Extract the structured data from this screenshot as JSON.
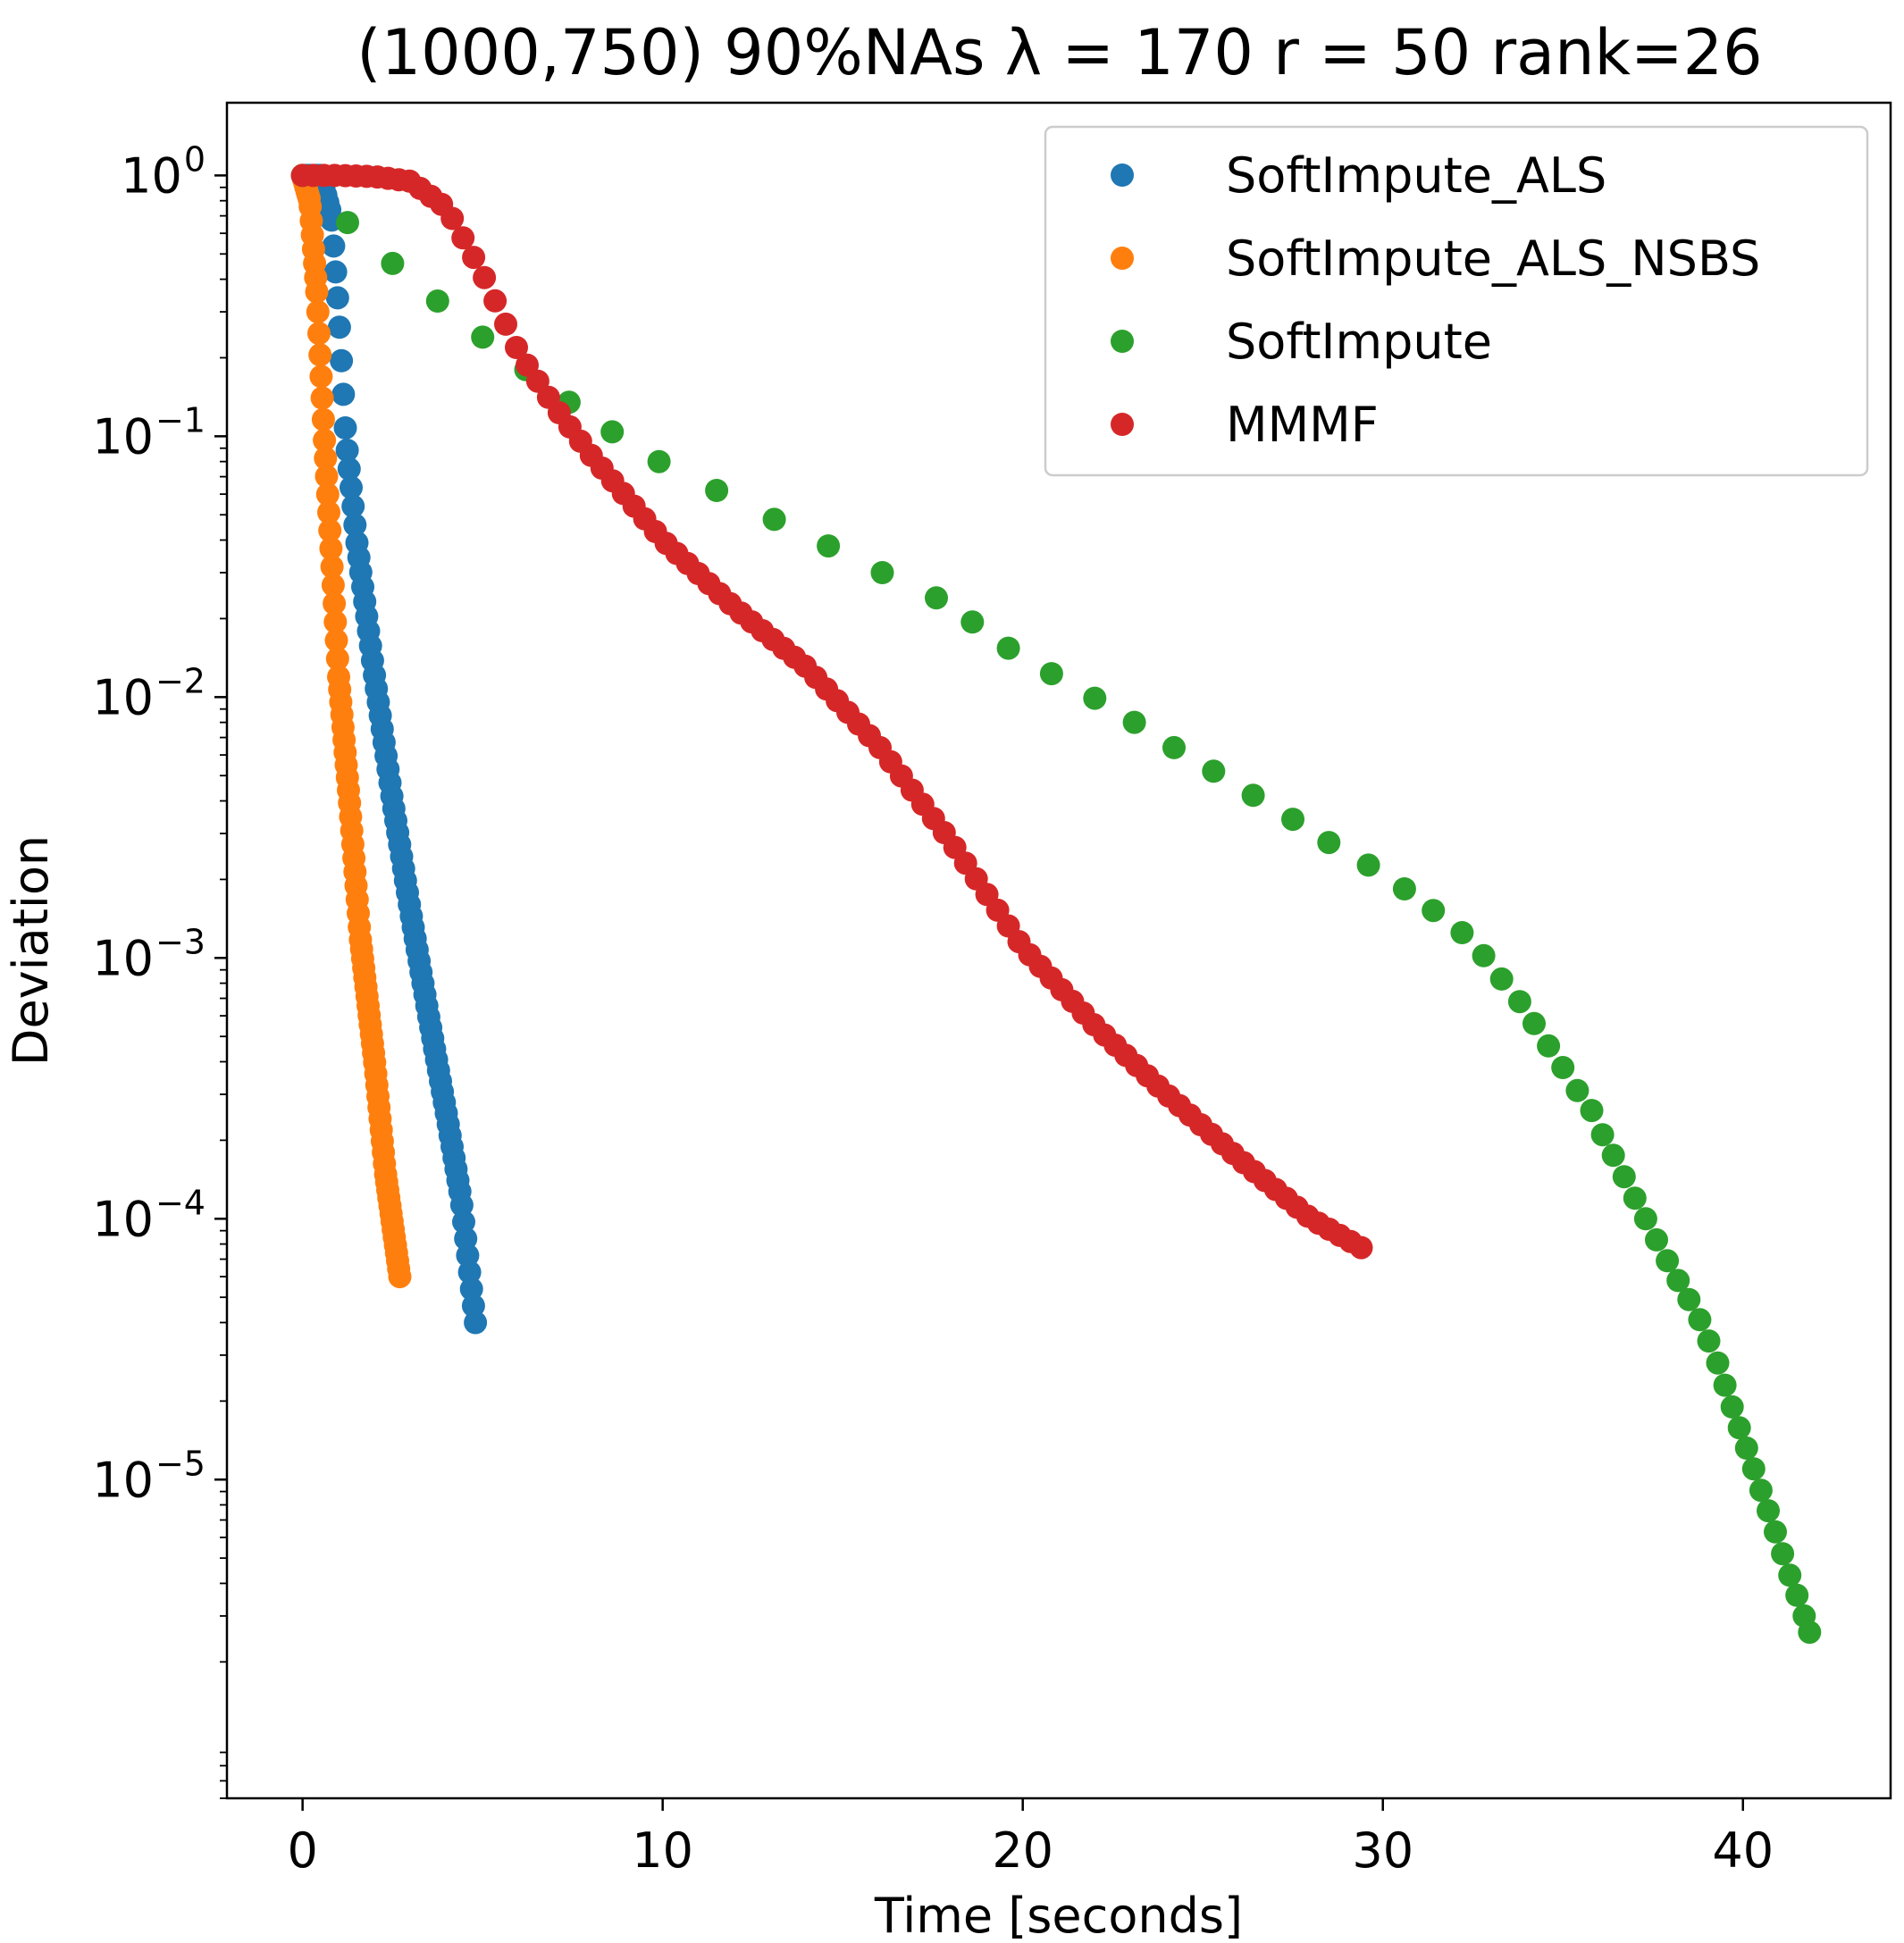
{
  "chart_data": {
    "type": "scatter",
    "title": "(1000,750) 90%NAs λ = 170 r = 50 rank=26",
    "xlabel": "Time [seconds]",
    "ylabel": "Deviation",
    "y_scale": "log",
    "xlim": [
      -2.1,
      44.1
    ],
    "ylim": [
      6e-07,
      1.9
    ],
    "x_ticks": [
      0,
      10,
      20,
      30,
      40
    ],
    "x_tick_labels": [
      "0",
      "10",
      "20",
      "30",
      "40"
    ],
    "y_ticks": [
      {
        "value": 1,
        "base": "10",
        "exp": "0"
      },
      {
        "value": 0.1,
        "base": "10",
        "exp": "−1"
      },
      {
        "value": 0.01,
        "base": "10",
        "exp": "−2"
      },
      {
        "value": 0.001,
        "base": "10",
        "exp": "−3"
      },
      {
        "value": 0.0001,
        "base": "10",
        "exp": "−4"
      },
      {
        "value": 1e-05,
        "base": "10",
        "exp": "−5"
      }
    ],
    "legend_position": "top-right",
    "grid": false,
    "series": [
      {
        "name": "SoftImpute_ALS",
        "color": "#1f77b4",
        "curve": {
          "count": 90,
          "t_max": 4.8,
          "anchors": [
            [
              0,
              1.0
            ],
            [
              0.5,
              1.0
            ],
            [
              0.8,
              0.7
            ],
            [
              1.0,
              0.3
            ],
            [
              1.2,
              0.1
            ],
            [
              1.5,
              0.04
            ],
            [
              2.0,
              0.012
            ],
            [
              2.5,
              0.004
            ],
            [
              3.0,
              0.0015
            ],
            [
              3.5,
              0.0006
            ],
            [
              4.0,
              0.00025
            ],
            [
              4.4,
              0.00012
            ],
            [
              4.8,
              4e-05
            ]
          ]
        }
      },
      {
        "name": "SoftImpute_ALS_NSBS",
        "color": "#ff7f0e",
        "curve": {
          "count": 90,
          "t_max": 2.7,
          "anchors": [
            [
              0,
              1.0
            ],
            [
              0.2,
              0.8
            ],
            [
              0.4,
              0.35
            ],
            [
              0.6,
              0.1
            ],
            [
              0.8,
              0.035
            ],
            [
              1.0,
              0.012
            ],
            [
              1.3,
              0.004
            ],
            [
              1.6,
              0.0012
            ],
            [
              2.0,
              0.0004
            ],
            [
              2.3,
              0.00015
            ],
            [
              2.7,
              6e-05
            ]
          ]
        }
      },
      {
        "name": "SoftImpute",
        "color": "#2ca02c",
        "points": [
          [
            0,
            1.0
          ],
          [
            1.25,
            0.66
          ],
          [
            2.5,
            0.46
          ],
          [
            3.75,
            0.33
          ],
          [
            5.0,
            0.24
          ],
          [
            6.2,
            0.18
          ],
          [
            7.4,
            0.135
          ],
          [
            8.6,
            0.104
          ],
          [
            9.9,
            0.08
          ],
          [
            11.5,
            0.062
          ],
          [
            13.1,
            0.048
          ],
          [
            14.6,
            0.038
          ],
          [
            16.1,
            0.03
          ],
          [
            17.6,
            0.024
          ],
          [
            18.6,
            0.0194
          ],
          [
            19.6,
            0.0154
          ],
          [
            20.8,
            0.0123
          ],
          [
            22.0,
            0.0099
          ],
          [
            23.1,
            0.008
          ],
          [
            24.2,
            0.0064
          ],
          [
            25.3,
            0.0052
          ],
          [
            26.4,
            0.0042
          ],
          [
            27.5,
            0.0034
          ],
          [
            28.5,
            0.00277
          ],
          [
            29.6,
            0.00227
          ],
          [
            30.6,
            0.00184
          ],
          [
            31.4,
            0.00152
          ],
          [
            32.2,
            0.00125
          ],
          [
            32.8,
            0.00102
          ],
          [
            33.3,
            0.00083
          ],
          [
            33.8,
            0.00068
          ],
          [
            34.2,
            0.00056
          ],
          [
            34.6,
            0.00046
          ],
          [
            35.0,
            0.00038
          ],
          [
            35.4,
            0.00031
          ],
          [
            35.8,
            0.00026
          ],
          [
            36.1,
            0.00021
          ],
          [
            36.4,
            0.000175
          ],
          [
            36.7,
            0.000145
          ],
          [
            37.0,
            0.00012
          ],
          [
            37.3,
            0.0001
          ],
          [
            37.6,
            8.3e-05
          ],
          [
            37.9,
            6.9e-05
          ],
          [
            38.2,
            5.8e-05
          ],
          [
            38.5,
            4.9e-05
          ],
          [
            38.8,
            4.1e-05
          ],
          [
            39.05,
            3.4e-05
          ],
          [
            39.3,
            2.8e-05
          ],
          [
            39.5,
            2.3e-05
          ],
          [
            39.7,
            1.9e-05
          ],
          [
            39.9,
            1.58e-05
          ],
          [
            40.1,
            1.32e-05
          ],
          [
            40.3,
            1.1e-05
          ],
          [
            40.5,
            9.1e-06
          ],
          [
            40.7,
            7.6e-06
          ],
          [
            40.9,
            6.3e-06
          ],
          [
            41.1,
            5.2e-06
          ],
          [
            41.3,
            4.3e-06
          ],
          [
            41.5,
            3.6e-06
          ],
          [
            41.7,
            3e-06
          ],
          [
            41.85,
            2.6e-06
          ]
        ]
      },
      {
        "name": "MMMF",
        "color": "#d62728",
        "curve": {
          "count": 100,
          "t_max": 29.4,
          "anchors": [
            [
              0,
              1.0
            ],
            [
              1,
              1.0
            ],
            [
              2,
              0.99
            ],
            [
              3,
              0.95
            ],
            [
              4,
              0.75
            ],
            [
              5,
              0.42
            ],
            [
              6,
              0.21
            ],
            [
              7,
              0.13
            ],
            [
              8,
              0.085
            ],
            [
              10,
              0.04
            ],
            [
              12,
              0.022
            ],
            [
              14,
              0.013
            ],
            [
              16,
              0.0065
            ],
            [
              18,
              0.0028
            ],
            [
              20,
              0.0011
            ],
            [
              22,
              0.00055
            ],
            [
              24,
              0.0003
            ],
            [
              26,
              0.00017
            ],
            [
              28,
              0.0001
            ],
            [
              29.4,
              7.75e-05
            ]
          ]
        }
      }
    ]
  }
}
